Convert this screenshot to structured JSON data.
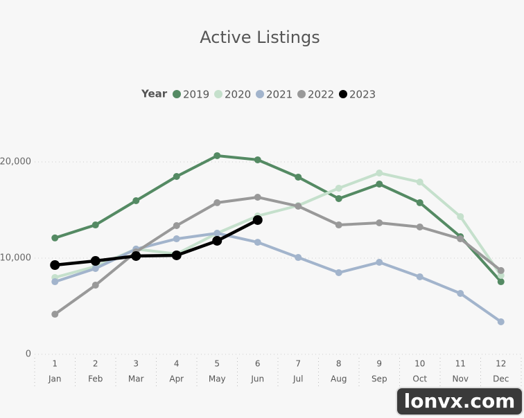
{
  "chart_data": {
    "type": "line",
    "title": "Active Listings",
    "legend_title": "Year",
    "categories": [
      "1",
      "2",
      "3",
      "4",
      "5",
      "6",
      "7",
      "8",
      "9",
      "10",
      "11",
      "12"
    ],
    "subcategories": [
      "Jan",
      "Feb",
      "Mar",
      "Apr",
      "May",
      "Jun",
      "Jul",
      "Aug",
      "Sep",
      "Oct",
      "Nov",
      "Dec"
    ],
    "ylim": [
      0,
      23000
    ],
    "yticks": [
      0,
      {
        "value": 10000,
        "label": "10,000"
      },
      {
        "value": 20000,
        "label": "20,000"
      }
    ],
    "grid": true,
    "series": [
      {
        "name": "2019",
        "color": "#548a63",
        "values": [
          12100,
          13450,
          15970,
          18490,
          20650,
          20220,
          18420,
          16190,
          17700,
          15760,
          12230,
          7550
        ]
      },
      {
        "name": "2020",
        "color": "#c5e0cc",
        "values": [
          7990,
          9140,
          10940,
          10430,
          12590,
          14390,
          15470,
          17270,
          18850,
          17910,
          14320,
          8200
        ]
      },
      {
        "name": "2021",
        "color": "#a2b4cc",
        "values": [
          7550,
          8920,
          10940,
          12010,
          12590,
          11650,
          10070,
          8490,
          9570,
          8060,
          6330,
          3380
        ]
      },
      {
        "name": "2022",
        "color": "#999999",
        "values": [
          4170,
          7190,
          10650,
          13380,
          15760,
          16330,
          15400,
          13450,
          13670,
          13240,
          12010,
          8710
        ]
      },
      {
        "name": "2023",
        "color": "#000000",
        "values": [
          9280,
          9710,
          10220,
          10290,
          11800,
          13960,
          null,
          null,
          null,
          null,
          null,
          null
        ]
      }
    ]
  },
  "watermark": "lonvx.com"
}
